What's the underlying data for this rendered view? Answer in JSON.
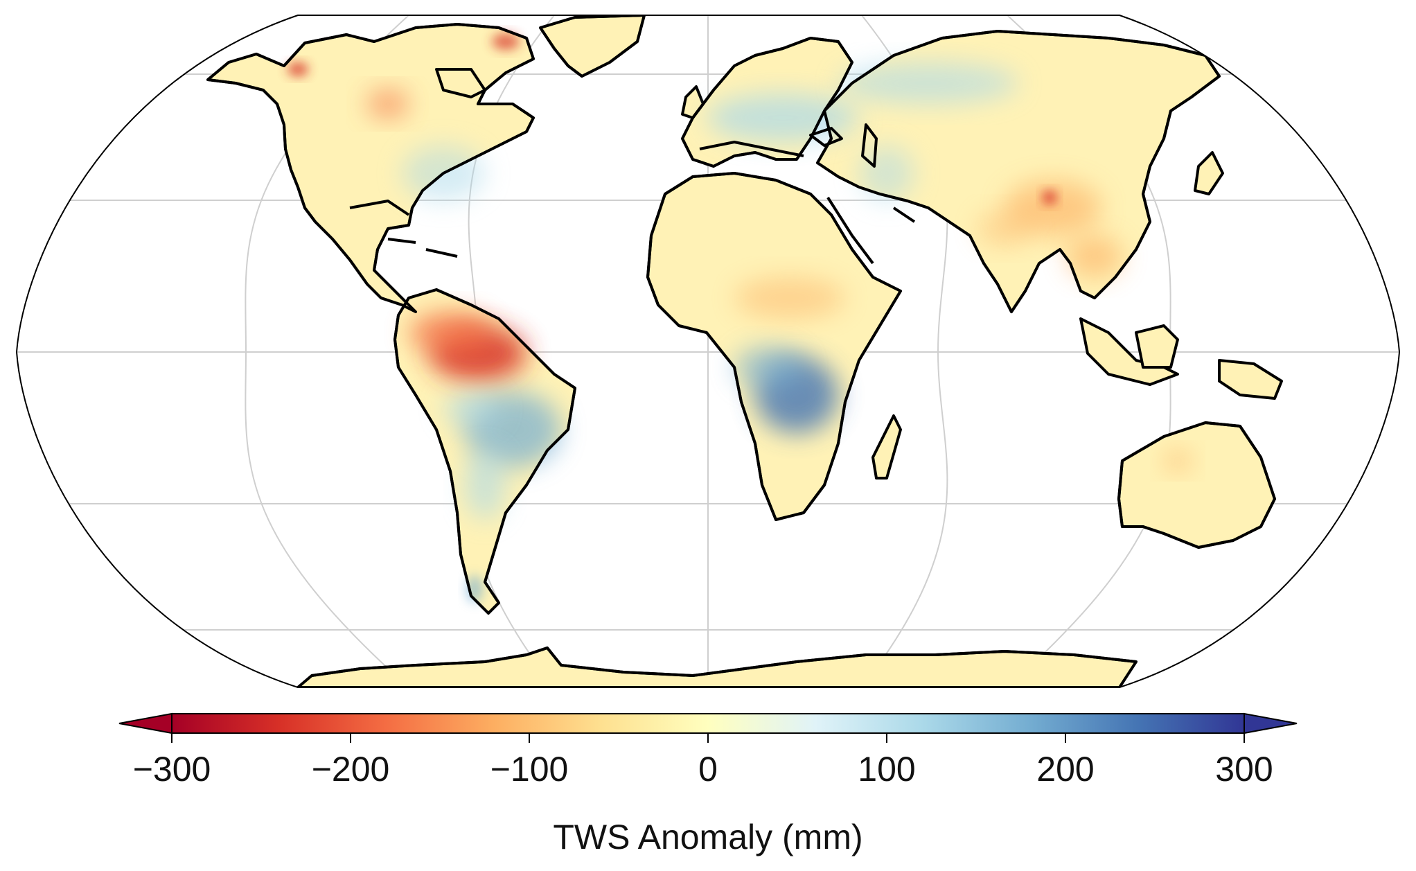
{
  "colorbar": {
    "label": "TWS Anomaly (mm)",
    "ticks": [
      "−300",
      "−200",
      "−100",
      "0",
      "100",
      "200",
      "300"
    ],
    "tick_values": [
      -300,
      -200,
      -100,
      0,
      100,
      200,
      300
    ],
    "range": [
      -300,
      300
    ],
    "extend": "both",
    "colormap": "RdYlBu",
    "colors": [
      "#a50026",
      "#d73027",
      "#f46d43",
      "#fdae61",
      "#fee090",
      "#ffffbf",
      "#e0f3f8",
      "#abd9e9",
      "#74add1",
      "#4575b4",
      "#313695"
    ]
  },
  "map": {
    "projection": "Robinson",
    "gridlines": true,
    "coastlines": true,
    "ocean_color": "#ffffff",
    "land_base_color": "#fff3b8"
  }
}
